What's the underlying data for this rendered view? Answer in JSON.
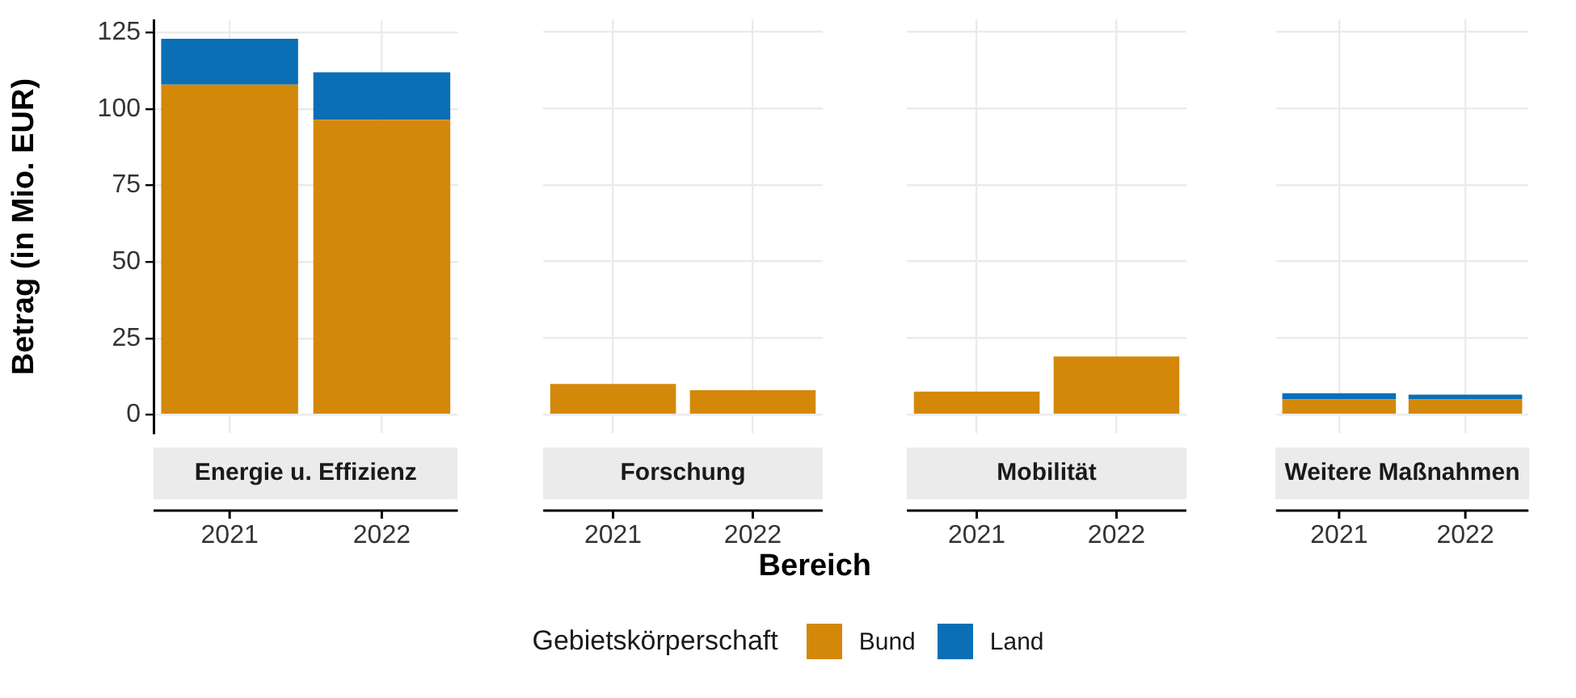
{
  "chart_data": [
    {
      "type": "bar",
      "title": "Energie u. Effizienz",
      "ylabel": "Betrag (in Mio. EUR)",
      "legend": "bottom",
      "legend_title": "Gebietskörperschaft",
      "categories": [
        "2021",
        "2022"
      ],
      "stacked": true,
      "grid": true,
      "ylim": [
        -6,
        129
      ],
      "yticks": [
        0,
        25,
        50,
        75,
        100,
        125
      ],
      "series": [
        {
          "name": "Bund",
          "color": "#d4880a",
          "values": [
            108,
            96.5
          ]
        },
        {
          "name": "Land",
          "color": "#0a6fb5",
          "values": [
            15,
            15.5
          ]
        }
      ]
    },
    {
      "type": "bar",
      "title": "Forschung",
      "xlabel": "Bereich",
      "categories": [
        "2021",
        "2022"
      ],
      "stacked": true,
      "grid": true,
      "tick_labels": "x",
      "ylim": [
        -6,
        129
      ],
      "yticks": [
        0,
        25,
        50,
        75,
        100,
        125
      ],
      "series": [
        {
          "color": "#d4880a",
          "values": [
            10,
            8
          ]
        },
        {
          "color": "#0a6fb5",
          "values": [
            0,
            0
          ]
        }
      ]
    },
    {
      "type": "bar",
      "title": "Mobilität",
      "categories": [
        "2021",
        "2022"
      ],
      "stacked": true,
      "grid": true,
      "tick_labels": "x",
      "ylim": [
        -6,
        129
      ],
      "yticks": [
        0,
        25,
        50,
        75,
        100,
        125
      ],
      "series": [
        {
          "color": "#d4880a",
          "values": [
            7.5,
            19
          ]
        },
        {
          "color": "#0a6fb5",
          "values": [
            0,
            0
          ]
        }
      ]
    },
    {
      "type": "bar",
      "title": "Weitere Maßnahmen",
      "categories": [
        "2021",
        "2022"
      ],
      "stacked": true,
      "grid": true,
      "tick_labels": "x",
      "ylim": [
        -6,
        129
      ],
      "yticks": [
        0,
        25,
        50,
        75,
        100,
        125
      ],
      "series": [
        {
          "color": "#d4880a",
          "values": [
            5,
            5
          ]
        },
        {
          "color": "#0a6fb5",
          "values": [
            2,
            1.5
          ]
        }
      ]
    }
  ]
}
